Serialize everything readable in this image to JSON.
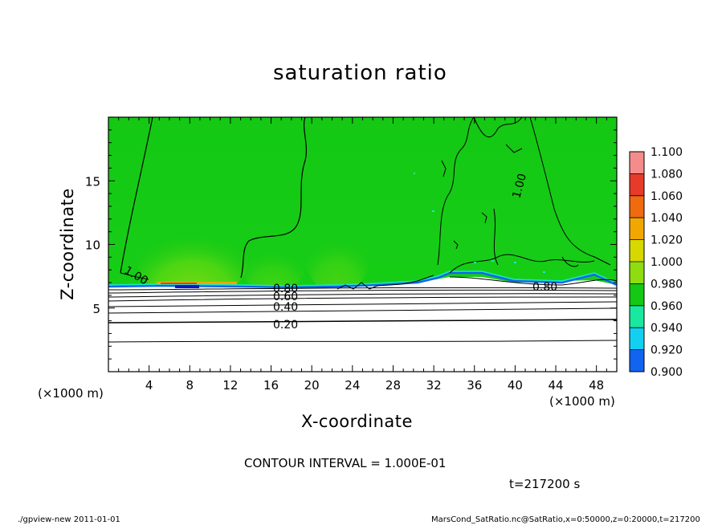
{
  "chart_data": {
    "type": "heatmap",
    "title": "saturation ratio",
    "xlabel": "X-coordinate",
    "ylabel": "Z-coordinate",
    "x_unit": "(×1000 m)",
    "y_unit": "(×1000 m)",
    "xlim": [
      0,
      50
    ],
    "ylim": [
      0,
      20
    ],
    "x_ticks": [
      "4",
      "8",
      "12",
      "16",
      "20",
      "24",
      "28",
      "32",
      "36",
      "40",
      "44",
      "48"
    ],
    "y_ticks": [
      "5",
      "10",
      "15"
    ],
    "colorbar": {
      "levels": [
        "1.100",
        "1.080",
        "1.060",
        "1.040",
        "1.020",
        "1.000",
        "0.980",
        "0.960",
        "0.940",
        "0.920",
        "0.900"
      ],
      "colors": [
        "#f48c8c",
        "#e83a2a",
        "#f06a10",
        "#f0a800",
        "#d6d800",
        "#8fdc10",
        "#14c814",
        "#18e8a0",
        "#14d0f0",
        "#1064f0",
        "#1010c8",
        "#6010b0"
      ]
    },
    "contour_labels": [
      {
        "text": "1.00"
      },
      {
        "text": "1.00"
      },
      {
        "text": "0.80"
      },
      {
        "text": "0.80"
      },
      {
        "text": "0.60"
      },
      {
        "text": "0.40"
      },
      {
        "text": "0.20"
      }
    ],
    "contour_interval": "CONTOUR INTERVAL = 1.000E-01",
    "time_label": "t=217200 s"
  },
  "footer": {
    "left": "./gpview-new  2011-01-01",
    "right": "MarsCond_SatRatio.nc@SatRatio,x=0:50000,z=0:20000,t=217200"
  }
}
